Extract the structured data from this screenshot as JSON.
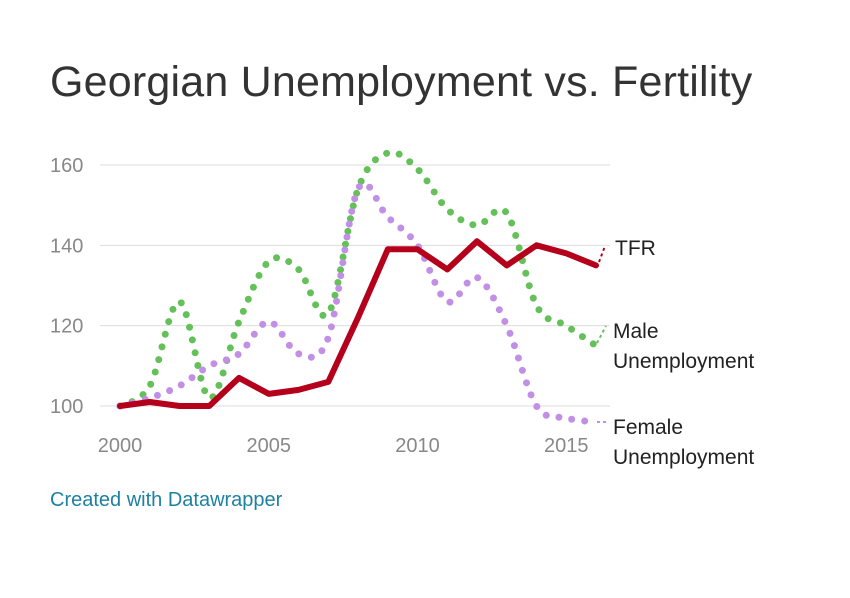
{
  "title": "Georgian Unemployment vs. Fertility",
  "credit": "Created with Datawrapper",
  "colors": {
    "tfr": "#b5001c",
    "male": "#64c058",
    "female": "#c190e6",
    "grid": "#dddddd",
    "axis_text": "#888888",
    "credit": "#1d81a2"
  },
  "chart_data": {
    "type": "line",
    "title": "Georgian Unemployment vs. Fertility",
    "x": [
      2000,
      2001,
      2002,
      2003,
      2004,
      2005,
      2006,
      2007,
      2008,
      2009,
      2010,
      2011,
      2012,
      2013,
      2014,
      2015,
      2016
    ],
    "xlim": [
      2000,
      2016
    ],
    "ylim": [
      100,
      160
    ],
    "x_ticks": [
      2000,
      2005,
      2010,
      2015
    ],
    "y_ticks": [
      100,
      120,
      140,
      160
    ],
    "grid": true,
    "legend": "inline-right",
    "series": [
      {
        "name": "Male Unemployment",
        "key": "male",
        "style": "dotted",
        "values": [
          100,
          105,
          126,
          102,
          121,
          136,
          134,
          123,
          154,
          163,
          159,
          149,
          145,
          148,
          125,
          120,
          115
        ],
        "label_lines": [
          "Male",
          "Unemployment"
        ]
      },
      {
        "name": "Female Unemployment",
        "key": "female",
        "style": "dotted",
        "values": [
          100,
          102,
          105,
          110,
          113,
          121,
          113,
          117,
          154,
          147,
          140,
          126,
          132,
          120,
          100,
          97,
          96
        ],
        "label_lines": [
          "Female",
          "Unemployment"
        ]
      },
      {
        "name": "TFR",
        "key": "tfr",
        "style": "solid",
        "values": [
          100,
          101,
          100,
          100,
          107,
          103,
          104,
          106,
          122,
          139,
          139,
          134,
          141,
          135,
          140,
          138,
          135
        ],
        "label_lines": [
          "TFR"
        ]
      }
    ]
  }
}
